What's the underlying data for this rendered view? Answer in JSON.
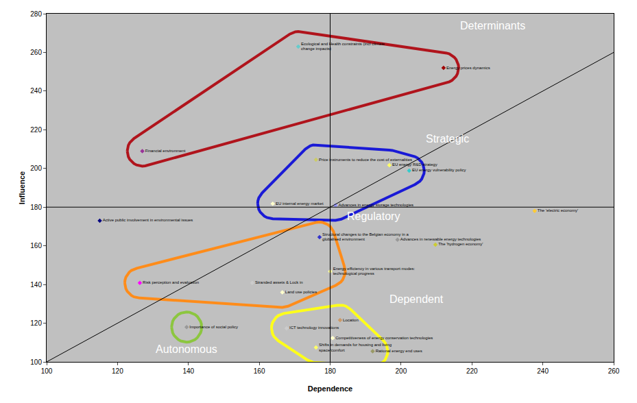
{
  "chart_data": {
    "type": "scatter",
    "xlabel": "Dependence",
    "ylabel": "Influence",
    "xlim": [
      100,
      260
    ],
    "xticks": [
      100,
      120,
      140,
      160,
      180,
      200,
      220,
      240,
      260
    ],
    "ylim": [
      100,
      280
    ],
    "yticks": [
      100,
      120,
      140,
      160,
      180,
      200,
      220,
      240,
      260,
      280
    ],
    "grid": false,
    "marker": "diamond",
    "x_divider": 180,
    "y_divider": 180,
    "labels": [
      "Ecological and Health constraints (incl climate\nchange impacts)",
      "Energy prices dynamics",
      "Financial environment",
      "Price instruments to reduce the cost of externalities",
      "EU energy R&D strategy",
      "EU energy vulnerability policy",
      "EU internal energy market",
      "Advances in energy storage technologies",
      "The 'electric economy'",
      "Active public involvement in environmental issues",
      "Structural changes to the Belgian economy in a\nglobalised environment",
      "Advances in renewable energy technologies",
      "The 'hydrogen economy'",
      "Energy efficiency in various transport modes:\ntechnological progress",
      "Risk perception and evaluation",
      "Stranded assets & Lock in",
      "Land use policies",
      "Importance of social policy",
      "ICT technology innovations",
      "Location",
      "Competitiveness of energy conservation technologies",
      "Shifts in demands for housing and living\nspace/comfort",
      "Rational energy end uses"
    ],
    "x": [
      171,
      212,
      127,
      176,
      196.7,
      202.3,
      163.8,
      181.5,
      237.7,
      115,
      177,
      199,
      209.7,
      180,
      126.3,
      158,
      166.5,
      139.5,
      167.7,
      182.8,
      180.7,
      176,
      192
    ],
    "y": [
      263,
      252,
      209,
      204.5,
      201.7,
      198.9,
      181.8,
      181,
      178,
      173,
      164.5,
      163.2,
      160.6,
      146.8,
      140.8,
      140.8,
      136,
      118,
      117.4,
      121.6,
      112.3,
      107.4,
      105.5
    ],
    "colors": [
      "#66cccc",
      "#a00000",
      "#993399",
      "#cccc66",
      "#ffff66",
      "#33cccc",
      "#ffffcc",
      "#9999ff",
      "#ffcc33",
      "#000080",
      "#3333cc",
      "#999999",
      "#cccc33",
      "#ffff99",
      "#ff00ff",
      "#cccccc",
      "#ffffcc",
      "#999999",
      "#cccccc",
      "#cc9966",
      "#ffffcc",
      "#ffff66",
      "#999966"
    ],
    "groups": [
      {
        "name": "Determinants",
        "color": "#b0141c",
        "members": [
          "Financial environment",
          "Ecological and Health constraints (incl climate\nchange impacts)",
          "Energy prices dynamics"
        ]
      },
      {
        "name": "Strategic",
        "color": "#1a1ad6",
        "members": [
          "Price instruments to reduce the cost of externalities",
          "EU energy R&D strategy",
          "EU energy vulnerability policy",
          "EU internal energy market",
          "Advances in energy storage technologies"
        ]
      },
      {
        "name": "Regulatory",
        "color": "#ff8c1a",
        "members": [
          "Structural changes to the Belgian economy in a\nglobalised environment",
          "Energy efficiency in various transport modes:\ntechnological progress",
          "Risk perception and evaluation",
          "Stranded assets & Lock in",
          "Land use policies"
        ]
      },
      {
        "name": "Autonomous",
        "color": "#8cc63f",
        "members": [
          "Importance of social policy"
        ]
      },
      {
        "name": "Dependent",
        "color": "#ffff1a",
        "members": [
          "ICT technology innovations",
          "Location",
          "Competitiveness of energy conservation technologies",
          "Shifts in demands for housing and living\nspace/comfort",
          "Rational energy end uses"
        ]
      }
    ]
  }
}
